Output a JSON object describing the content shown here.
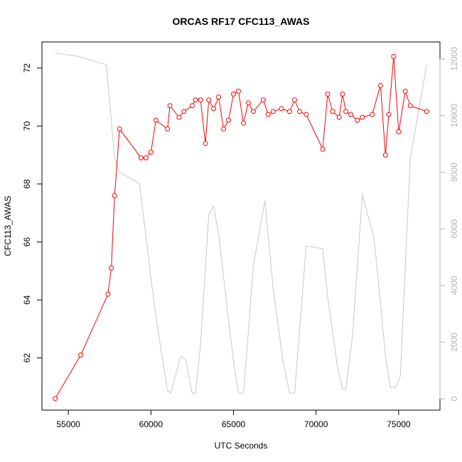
{
  "chart_data": {
    "type": "line",
    "title": "ORCAS RF17 CFC113_AWAS",
    "xlabel": "UTC Seconds",
    "ylabel": "CFC113_AWAS",
    "xlim": [
      53400,
      77500
    ],
    "ylim": [
      60.2,
      72.9
    ],
    "y2lim": [
      -400,
      12600
    ],
    "x_ticks": [
      55000,
      60000,
      65000,
      70000,
      75000
    ],
    "y_ticks": [
      62,
      64,
      66,
      68,
      70,
      72
    ],
    "y2_ticks": [
      0,
      2000,
      4000,
      6000,
      8000,
      10000,
      12000
    ],
    "series": [
      {
        "axis": "left",
        "color": "#ff0000",
        "style": "line+open-circles",
        "x": [
          54200,
          55750,
          57400,
          57600,
          57800,
          58100,
          59400,
          59700,
          60000,
          60300,
          61000,
          61150,
          61700,
          62000,
          62500,
          62700,
          63000,
          63300,
          63500,
          63800,
          64100,
          64400,
          64700,
          65000,
          65300,
          65600,
          65900,
          66200,
          66800,
          67100,
          67400,
          67900,
          68400,
          68700,
          69000,
          69400,
          70400,
          70700,
          71000,
          71400,
          71600,
          71800,
          72100,
          72500,
          72800,
          73400,
          73900,
          74200,
          74400,
          74700,
          75000,
          75400,
          75700,
          76700
        ],
        "values": [
          60.6,
          62.1,
          64.2,
          65.1,
          67.6,
          69.9,
          68.9,
          68.9,
          69.1,
          70.2,
          69.9,
          70.7,
          70.3,
          70.5,
          70.7,
          70.9,
          70.9,
          69.4,
          70.9,
          70.6,
          71.0,
          69.9,
          70.2,
          71.1,
          71.2,
          70.1,
          70.8,
          70.5,
          70.9,
          70.4,
          70.5,
          70.6,
          70.5,
          70.9,
          70.5,
          70.4,
          69.2,
          71.1,
          70.5,
          70.3,
          71.1,
          70.5,
          70.4,
          70.2,
          70.3,
          70.4,
          71.4,
          69.0,
          70.4,
          72.4,
          69.8,
          71.2,
          70.7,
          70.5
        ]
      },
      {
        "axis": "right",
        "color": "#c8c8c8",
        "style": "line",
        "x": [
          54200,
          55500,
          57300,
          57800,
          58100,
          59300,
          60100,
          60400,
          61000,
          61200,
          61800,
          62100,
          62500,
          62700,
          63000,
          63500,
          63800,
          64100,
          65000,
          65300,
          65600,
          65800,
          66200,
          66900,
          67400,
          68000,
          68400,
          68700,
          69400,
          70400,
          70700,
          71300,
          71600,
          71800,
          72200,
          72800,
          73500,
          73800,
          74200,
          74500,
          74800,
          75100,
          75700,
          76700
        ],
        "values": [
          12200,
          12100,
          11800,
          8500,
          8000,
          7600,
          3800,
          2500,
          300,
          200,
          1500,
          1400,
          200,
          200,
          1900,
          6500,
          6800,
          5800,
          1300,
          200,
          200,
          1600,
          4700,
          7000,
          3900,
          1300,
          200,
          200,
          5400,
          5300,
          3600,
          1100,
          350,
          350,
          2200,
          7200,
          5700,
          4000,
          1500,
          400,
          400,
          800,
          8500,
          11800
        ]
      }
    ]
  }
}
